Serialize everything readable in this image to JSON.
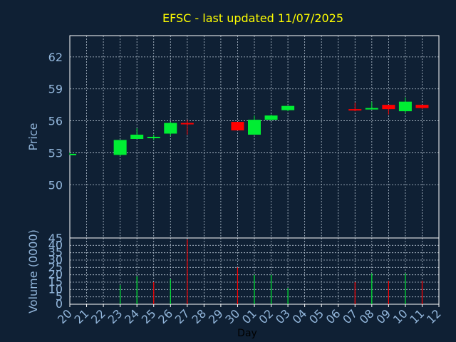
{
  "chart_data": {
    "type": "candlestick",
    "title": "EFSC - last updated 11/07/2025",
    "xlabel": "Day",
    "x_ticks": [
      "20",
      "21",
      "22",
      "23",
      "24",
      "25",
      "26",
      "27",
      "28",
      "29",
      "30",
      "01",
      "02",
      "03",
      "04",
      "05",
      "06",
      "07",
      "08",
      "09",
      "10",
      "11",
      "12"
    ],
    "price_panel": {
      "ylabel": "Price",
      "ylim": [
        45,
        64
      ],
      "y_ticks": [
        50,
        53,
        56,
        59,
        62
      ],
      "grid": true,
      "candles": [
        {
          "day": "20",
          "open": 52.9,
          "high": 53.0,
          "low": 52.8,
          "close": 52.9
        },
        {
          "day": "23",
          "open": 52.8,
          "high": 54.2,
          "low": 52.7,
          "close": 54.2
        },
        {
          "day": "24",
          "open": 54.3,
          "high": 55.3,
          "low": 54.3,
          "close": 54.7
        },
        {
          "day": "25",
          "open": 54.5,
          "high": 54.7,
          "low": 54.2,
          "close": 54.5
        },
        {
          "day": "26",
          "open": 54.8,
          "high": 55.9,
          "low": 54.6,
          "close": 55.8
        },
        {
          "day": "27",
          "open": 55.8,
          "high": 56.1,
          "low": 54.7,
          "close": 55.7
        },
        {
          "day": "30",
          "open": 55.9,
          "high": 55.9,
          "low": 55.1,
          "close": 55.1
        },
        {
          "day": "01",
          "open": 54.7,
          "high": 56.5,
          "low": 54.7,
          "close": 56.1
        },
        {
          "day": "02",
          "open": 56.1,
          "high": 56.6,
          "low": 56.0,
          "close": 56.5
        },
        {
          "day": "03",
          "open": 57.0,
          "high": 57.4,
          "low": 56.9,
          "close": 57.4
        },
        {
          "day": "07",
          "open": 57.1,
          "high": 57.7,
          "low": 56.9,
          "close": 57.0
        },
        {
          "day": "08",
          "open": 57.1,
          "high": 57.8,
          "low": 57.1,
          "close": 57.2
        },
        {
          "day": "09",
          "open": 57.5,
          "high": 57.5,
          "low": 56.6,
          "close": 57.1
        },
        {
          "day": "10",
          "open": 56.9,
          "high": 58.2,
          "low": 56.7,
          "close": 57.8
        },
        {
          "day": "11",
          "open": 57.5,
          "high": 57.5,
          "low": 57.1,
          "close": 57.2
        }
      ]
    },
    "volume_panel": {
      "ylabel": "Volume (0000)",
      "ylim": [
        0,
        45
      ],
      "y_ticks": [
        0,
        5,
        10,
        15,
        20,
        25,
        30,
        35,
        40,
        45
      ],
      "grid": true,
      "bars": [
        {
          "day": "23",
          "value": 13,
          "direction": "up"
        },
        {
          "day": "24",
          "value": 19,
          "direction": "up"
        },
        {
          "day": "25",
          "value": 15,
          "direction": "down"
        },
        {
          "day": "26",
          "value": 17,
          "direction": "up"
        },
        {
          "day": "27",
          "value": 44,
          "direction": "down"
        },
        {
          "day": "30",
          "value": 25,
          "direction": "down"
        },
        {
          "day": "01",
          "value": 20,
          "direction": "up"
        },
        {
          "day": "02",
          "value": 20,
          "direction": "up"
        },
        {
          "day": "03",
          "value": 11,
          "direction": "up"
        },
        {
          "day": "07",
          "value": 15,
          "direction": "down"
        },
        {
          "day": "08",
          "value": 21,
          "direction": "up"
        },
        {
          "day": "09",
          "value": 16,
          "direction": "down"
        },
        {
          "day": "10",
          "value": 21,
          "direction": "up"
        },
        {
          "day": "11",
          "value": 16,
          "direction": "down"
        }
      ]
    },
    "colors": {
      "background": "#0f2034",
      "axis": "#ffffff",
      "grid": "#b9c6d3",
      "tick_label": "#93b7dc",
      "title": "#ffff00",
      "xlabel": "#000000",
      "up": "#00ee33",
      "down": "#ff0000"
    }
  }
}
